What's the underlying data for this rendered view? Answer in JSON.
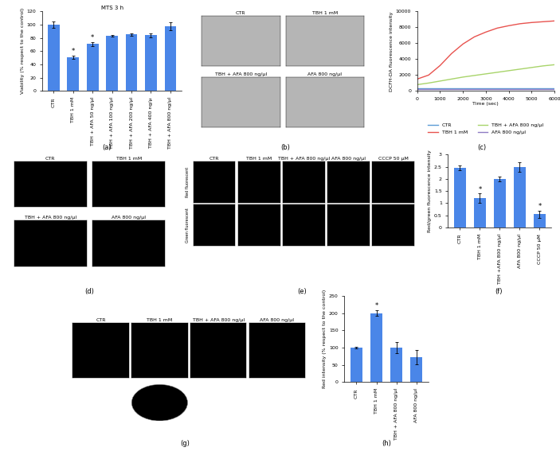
{
  "chart_data": [
    {
      "panel": "(a)",
      "type": "bar",
      "title": "MTS 3 h",
      "ylabel": "Viability (% respect to the control)",
      "categories": [
        "CTR",
        "TBH 1 mM",
        "TBH + AFA 50 ng/μl",
        "TBH + AFA 100 ng/μl",
        "TBH + AFA 200 ng/μl",
        "TBH + AFA 400 ng/μ",
        "TBH + AFA 800 ng/μl"
      ],
      "values": [
        100,
        51,
        71,
        83,
        85,
        84,
        98
      ],
      "errors": [
        5,
        2,
        3,
        1,
        2,
        3,
        6
      ],
      "color": "#4a86e8",
      "ylim": [
        0,
        120
      ],
      "yticks": [
        0,
        20,
        40,
        60,
        80,
        100,
        120
      ],
      "annotations": [
        {
          "category": "TBH 1 mM",
          "text": "*"
        },
        {
          "category": "TBH + AFA 50 ng/μl",
          "text": "*"
        }
      ]
    },
    {
      "panel": "(c)",
      "type": "line",
      "xlabel": "Time (sec)",
      "ylabel": "DCFH-DA fluorescence intensity",
      "x": [
        0,
        500,
        1000,
        1500,
        2000,
        2500,
        3000,
        3500,
        4000,
        4500,
        5000,
        5500,
        6000
      ],
      "series": [
        {
          "name": "CTR",
          "color": "#5b9bd5",
          "values": [
            300,
            300,
            300,
            300,
            300,
            300,
            300,
            300,
            300,
            300,
            300,
            300,
            300
          ]
        },
        {
          "name": "TBH 1 mM",
          "color": "#e8534f",
          "values": [
            1500,
            2000,
            3200,
            4700,
            5900,
            6800,
            7400,
            7900,
            8200,
            8450,
            8600,
            8700,
            8800
          ]
        },
        {
          "name": "TBH + AFA 800 ng/μl",
          "color": "#a8d46a",
          "values": [
            800,
            1000,
            1250,
            1500,
            1750,
            1950,
            2150,
            2350,
            2550,
            2750,
            2950,
            3150,
            3300
          ]
        },
        {
          "name": "AFA 800 ng/μl",
          "color": "#8e7cc3",
          "values": [
            200,
            200,
            200,
            200,
            200,
            200,
            200,
            200,
            200,
            200,
            200,
            200,
            200
          ]
        }
      ],
      "xlim": [
        0,
        6000
      ],
      "xticks": [
        0,
        1000,
        2000,
        3000,
        4000,
        5000,
        6000
      ],
      "ylim": [
        0,
        10000
      ],
      "yticks": [
        0,
        2000,
        4000,
        6000,
        8000,
        10000
      ],
      "legend": "lower center"
    },
    {
      "panel": "(f)",
      "type": "bar",
      "ylabel": "Red/green fluorescence intensity",
      "categories": [
        "CTR",
        "TBH 1 mM",
        "TBH +AFA 800 ng/μl",
        "AFA 800 ng/μl",
        "CCCP 50 μM"
      ],
      "values": [
        2.45,
        1.2,
        2.0,
        2.5,
        0.55
      ],
      "errors": [
        0.1,
        0.2,
        0.1,
        0.2,
        0.15
      ],
      "color": "#4a86e8",
      "ylim": [
        0,
        3
      ],
      "yticks": [
        0,
        0.5,
        1,
        1.5,
        2,
        2.5,
        3
      ],
      "annotations": [
        {
          "category": "TBH 1 mM",
          "text": "*"
        },
        {
          "category": "CCCP 50 μM",
          "text": "*"
        }
      ]
    },
    {
      "panel": "(h)",
      "type": "bar",
      "ylabel": "Red intensity (% respect to the control)",
      "categories": [
        "CTR",
        "TBH 1 mM",
        "TBH + AFA 800 ng/μl",
        "AFA 800 ng/μl"
      ],
      "values": [
        100,
        200,
        100,
        72
      ],
      "errors": [
        3,
        8,
        15,
        20
      ],
      "color": "#4a86e8",
      "ylim": [
        0,
        250
      ],
      "yticks": [
        0,
        50,
        100,
        150,
        200,
        250
      ],
      "annotations": [
        {
          "category": "TBH 1 mM",
          "text": "*"
        }
      ]
    }
  ],
  "image_panels": [
    {
      "panel": "(b)",
      "kind": "brightfield",
      "images": [
        "CTR",
        "TBH 1 mM",
        "TBH + AFA 800 ng/μl",
        "AFA 800 ng/μl"
      ]
    },
    {
      "panel": "(d)",
      "kind": "fluorescence",
      "images": [
        "CTR",
        "TBH 1 mM",
        "TBH + AFA 800 ng/μl",
        "AFA 800 ng/μl"
      ]
    },
    {
      "panel": "(e)",
      "kind": "fluorescence",
      "columns": [
        "CTR",
        "TBH 1 mM",
        "TBH + AFA 800 ng/μl",
        "AFA 800 ng/μl",
        "CCCP 50 μM"
      ],
      "rows": [
        "Red fluorescent",
        "Green fluorescent"
      ]
    },
    {
      "panel": "(g)",
      "kind": "fluorescence",
      "images": [
        "CTR",
        "TBH 1 mM",
        "TBH + AFA 800 ng/μl",
        "AFA 800 ng/μl"
      ]
    }
  ]
}
